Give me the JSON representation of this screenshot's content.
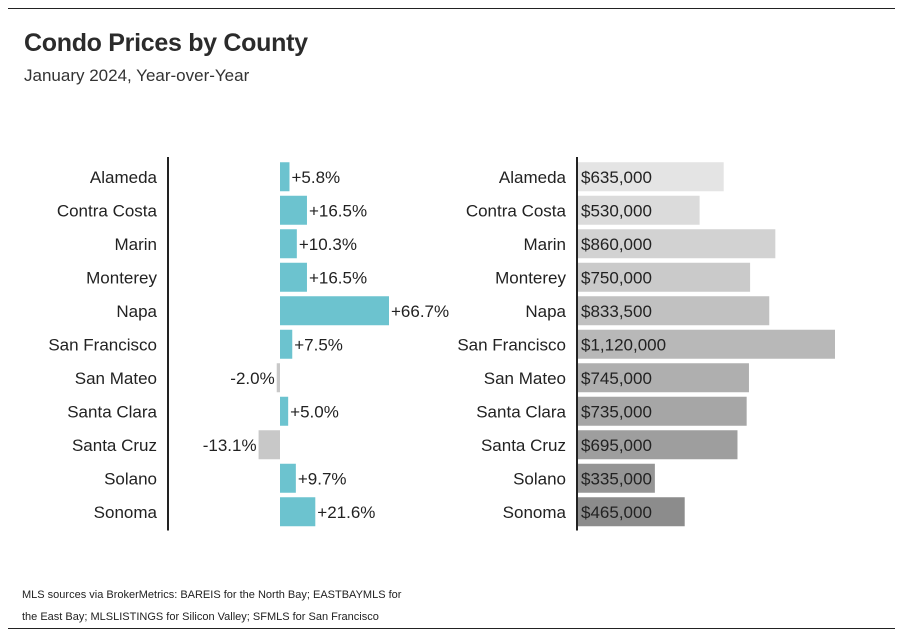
{
  "header": {
    "title": "Condo Prices by County",
    "subtitle": "January 2024, Year-over-Year"
  },
  "footer": {
    "source": "MLS sources via BrokerMetrics: BAREIS for the North Bay; EASTBAYMLS for the East Bay; MLSLISTINGS for Silicon Valley; SFMLS for San Francisco"
  },
  "colors": {
    "positive_bar": "#6cc3cf",
    "negative_bar": "#c8c8c8",
    "price_bar_light": "#e4e4e4",
    "price_bar_dark": "#8c8c8c",
    "axis": "#222222"
  },
  "chart_data": [
    {
      "type": "bar",
      "orientation": "horizontal",
      "categories": [
        "Alameda",
        "Contra Costa",
        "Marin",
        "Monterey",
        "Napa",
        "San Francisco",
        "San Mateo",
        "Santa Clara",
        "Santa Cruz",
        "Solano",
        "Sonoma"
      ],
      "values": [
        5.8,
        16.5,
        10.3,
        16.5,
        66.7,
        7.5,
        -2.0,
        5.0,
        -13.1,
        9.7,
        21.6
      ],
      "labels": [
        "+5.8%",
        "+16.5%",
        "+10.3%",
        "+16.5%",
        "+66.7%",
        "+7.5%",
        "-2.0%",
        "+5.0%",
        "-13.1%",
        "+9.7%",
        "+21.6%"
      ],
      "unit": "% change year-over-year"
    },
    {
      "type": "bar",
      "orientation": "horizontal",
      "categories": [
        "Alameda",
        "Contra Costa",
        "Marin",
        "Monterey",
        "Napa",
        "San Francisco",
        "San Mateo",
        "Santa Clara",
        "Santa Cruz",
        "Solano",
        "Sonoma"
      ],
      "values": [
        635000,
        530000,
        860000,
        750000,
        833500,
        1120000,
        745000,
        735000,
        695000,
        335000,
        465000
      ],
      "labels": [
        "$635,000",
        "$530,000",
        "$860,000",
        "$750,000",
        "$833,500",
        "$1,120,000",
        "$745,000",
        "$735,000",
        "$695,000",
        "$335,000",
        "$465,000"
      ],
      "unit": "USD median price"
    }
  ]
}
